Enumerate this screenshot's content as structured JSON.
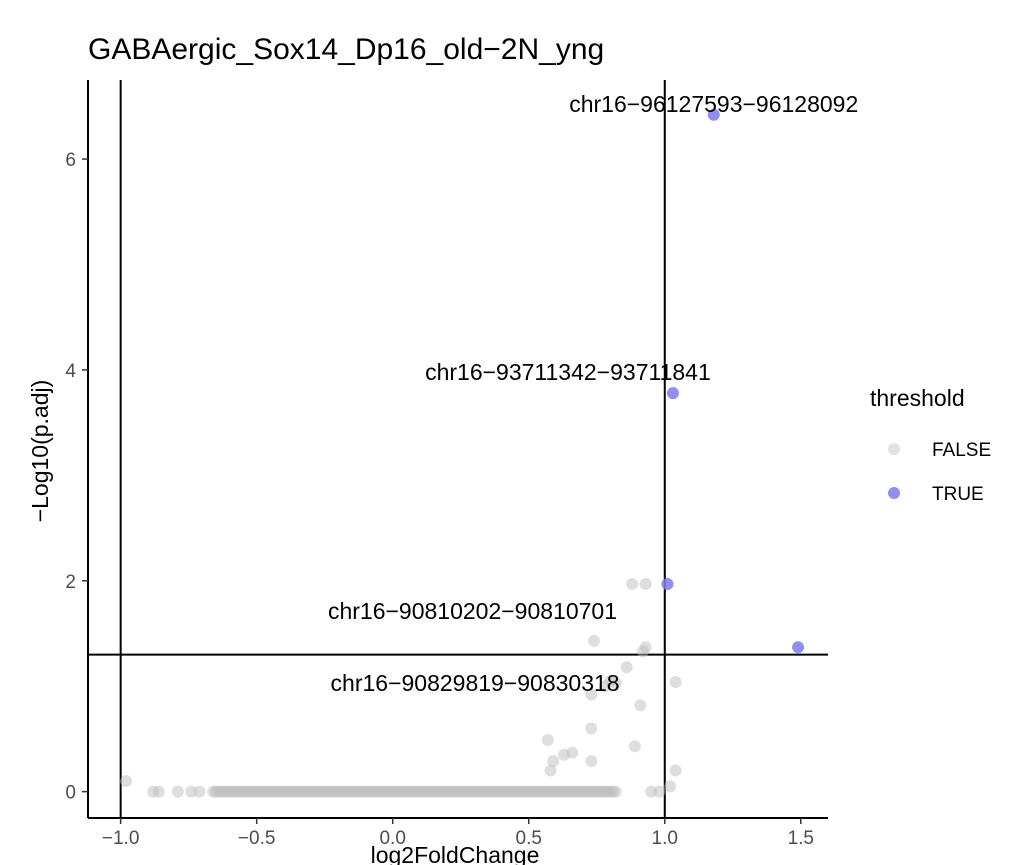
{
  "chart_data": {
    "type": "scatter",
    "title": "GABAergic_Sox14_Dp16_old−2N_yng",
    "xlabel": "log2FoldChange",
    "ylabel": "−Log10(p.adj)",
    "xlim": [
      -1.12,
      1.6
    ],
    "ylim": [
      -0.25,
      6.75
    ],
    "x_ticks": [
      -1.0,
      -0.5,
      0.0,
      0.5,
      1.0,
      1.5
    ],
    "x_tick_labels": [
      "−1.0",
      "−0.5",
      "0.0",
      "0.5",
      "1.0",
      "1.5"
    ],
    "y_ticks": [
      0,
      2,
      4,
      6
    ],
    "y_tick_labels": [
      "0",
      "2",
      "4",
      "6"
    ],
    "grid": false,
    "reference_lines": {
      "vertical": [
        -1,
        1
      ],
      "horizontal": [
        1.3
      ]
    },
    "legend": {
      "title": "threshold",
      "placement": "right",
      "entries": [
        {
          "label": "FALSE",
          "color": "#bebebe"
        },
        {
          "label": "TRUE",
          "color": "#7b7bf0"
        }
      ]
    },
    "false_points": [
      [
        -0.98,
        0.1
      ],
      [
        -0.88,
        0.0
      ],
      [
        -0.86,
        0.0
      ],
      [
        -0.79,
        0.0
      ],
      [
        -0.74,
        0.0
      ],
      [
        -0.71,
        0.0
      ],
      [
        0.74,
        1.43
      ],
      [
        0.88,
        1.97
      ],
      [
        0.93,
        1.97
      ],
      [
        0.93,
        1.37
      ],
      [
        0.92,
        1.33
      ],
      [
        0.86,
        1.18
      ],
      [
        0.8,
        1.05
      ],
      [
        0.82,
        1.03
      ],
      [
        0.78,
        1.0
      ],
      [
        0.73,
        0.92
      ],
      [
        0.91,
        0.82
      ],
      [
        0.57,
        0.49
      ],
      [
        0.73,
        0.6
      ],
      [
        0.66,
        0.37
      ],
      [
        0.63,
        0.35
      ],
      [
        0.59,
        0.29
      ],
      [
        0.73,
        0.29
      ],
      [
        0.89,
        0.43
      ],
      [
        0.58,
        0.2
      ],
      [
        1.04,
        0.2
      ],
      [
        1.02,
        0.05
      ],
      [
        1.04,
        1.04
      ],
      [
        0.95,
        0.0
      ],
      [
        0.98,
        0.0
      ]
    ],
    "false_dense_range": {
      "x_from": -0.66,
      "x_to": 0.82,
      "y": 0.0
    },
    "true_points": [
      {
        "x": 1.18,
        "y": 6.42,
        "label": "chr16−96127593−96128092"
      },
      {
        "x": 1.03,
        "y": 3.78,
        "label": "chr16−93711342−93711841"
      },
      {
        "x": 1.01,
        "y": 1.97,
        "label": "chr16−90810202−90810701"
      },
      {
        "x": 1.49,
        "y": 1.37,
        "label": "chr16−90829819−90830318"
      }
    ]
  }
}
